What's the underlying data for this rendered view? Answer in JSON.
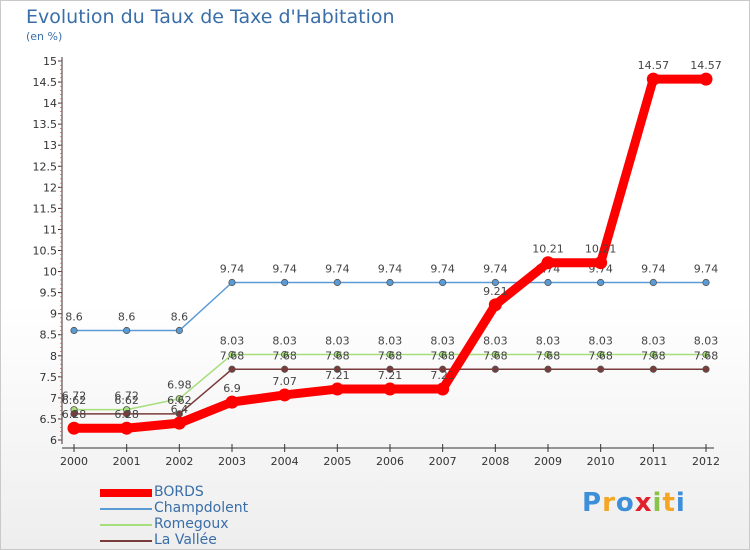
{
  "chart_data": {
    "type": "line",
    "title": "Evolution du Taux de Taxe d'Habitation",
    "subtitle": "(en %)",
    "xlabel": "",
    "ylabel": "(en %)",
    "ylim": [
      6,
      15
    ],
    "yticks": [
      "6",
      "6.5",
      "7",
      "7.5",
      "8",
      "8.5",
      "9",
      "9.5",
      "10",
      "10.5",
      "11",
      "11.5",
      "12",
      "12.5",
      "13",
      "13.5",
      "14",
      "14.5",
      "15"
    ],
    "categories": [
      "2000",
      "2001",
      "2002",
      "2003",
      "2004",
      "2005",
      "2006",
      "2007",
      "2008",
      "2009",
      "2010",
      "2011",
      "2012"
    ],
    "series": [
      {
        "name": "Champdolent",
        "color": "#5b9bd5",
        "values": [
          8.6,
          8.6,
          8.6,
          9.74,
          9.74,
          9.74,
          9.74,
          9.74,
          9.74,
          9.74,
          9.74,
          9.74,
          9.74
        ],
        "labels": [
          "8.6",
          "8.6",
          "8.6",
          "9.74",
          "9.74",
          "9.74",
          "9.74",
          "9.74",
          "9.74",
          "9.74",
          "9.74",
          "9.74",
          "9.74"
        ]
      },
      {
        "name": "Romegoux",
        "color": "#a6de7a",
        "values": [
          6.72,
          6.72,
          6.98,
          8.03,
          8.03,
          8.03,
          8.03,
          8.03,
          8.03,
          8.03,
          8.03,
          8.03,
          8.03
        ],
        "labels": [
          "6.72",
          "6.72",
          "6.98",
          "8.03",
          "8.03",
          "8.03",
          "8.03",
          "8.03",
          "8.03",
          "8.03",
          "8.03",
          "8.03",
          "8.03"
        ]
      },
      {
        "name": "La Vallée",
        "color": "#7a3b3b",
        "values": [
          6.62,
          6.62,
          6.62,
          7.68,
          7.68,
          7.68,
          7.68,
          7.68,
          7.68,
          7.68,
          7.68,
          7.68,
          7.68
        ],
        "labels": [
          "6.62",
          "6.62",
          "6.62",
          "7.68",
          "7.68",
          "7.68",
          "7.68",
          "7.68",
          "7.68",
          "7.68",
          "7.68",
          "7.68",
          "7.68"
        ]
      },
      {
        "name": "BORDS",
        "color": "#ff0000",
        "values": [
          6.28,
          6.28,
          6.4,
          6.9,
          7.07,
          7.21,
          7.21,
          7.21,
          9.21,
          10.21,
          10.21,
          14.57,
          14.57
        ],
        "labels": [
          "6.28",
          "6.28",
          "6.4",
          "6.9",
          "7.07",
          "7.21",
          "7.21",
          "7.21",
          "9.21",
          "10.21",
          "10.21",
          "14.57",
          "14.57"
        ]
      }
    ],
    "legend": {
      "placement": "bottom-left",
      "order": [
        "BORDS",
        "Champdolent",
        "Romegoux",
        "La Vallée"
      ]
    }
  },
  "brand": {
    "letters": [
      "P",
      "r",
      "o",
      "x",
      "i",
      "t",
      "i"
    ],
    "colors": [
      "#3d8fd9",
      "#f5a623",
      "#3d8fd9",
      "#e0202a",
      "#8bc34a",
      "#f5a623",
      "#3d8fd9"
    ]
  }
}
